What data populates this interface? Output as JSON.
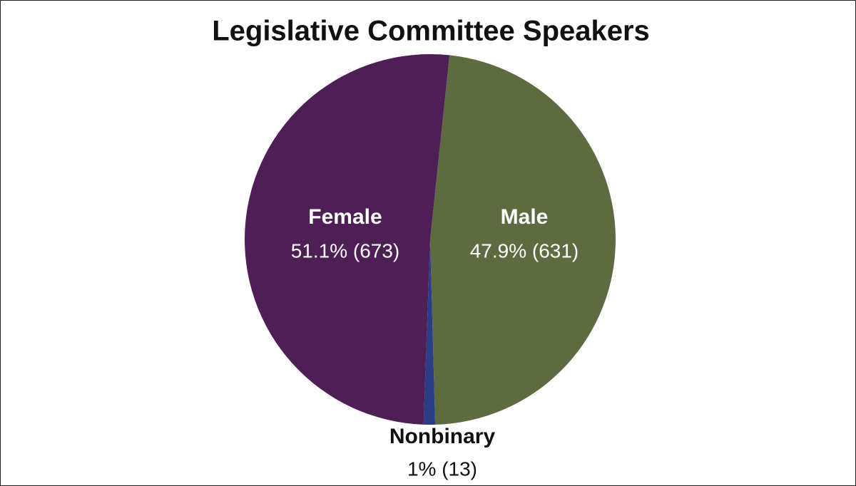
{
  "chart_data": {
    "type": "pie",
    "title": "Legislative Committee Speakers",
    "categories": [
      "Male",
      "Nonbinary",
      "Female"
    ],
    "values": [
      47.9,
      1,
      51.1
    ],
    "value_labels": [
      "47.9% (631)",
      "1% (13)",
      "51.1% (673)"
    ],
    "colors": [
      "#5e6b40",
      "#2b3d86",
      "#4e1f55"
    ]
  }
}
